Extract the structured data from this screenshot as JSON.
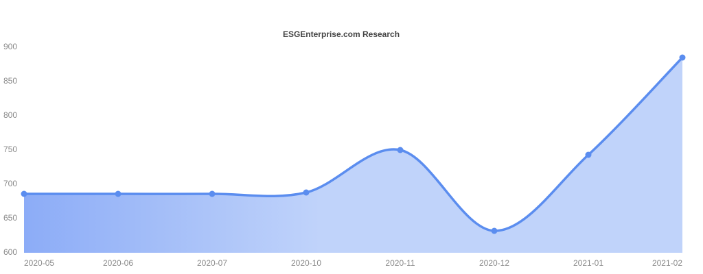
{
  "chart_data": {
    "type": "area",
    "title": "ESGEnterprise.com Research",
    "categories": [
      "2020-05",
      "2020-06",
      "2020-07",
      "2020-10",
      "2020-11",
      "2020-12",
      "2021-01",
      "2021-02"
    ],
    "series": [
      {
        "color": "#5b8def",
        "values": [
          686,
          686,
          686,
          688,
          750,
          632,
          743,
          885
        ]
      }
    ],
    "ylim": [
      600,
      900
    ],
    "yticks": [
      600,
      650,
      700,
      750,
      800,
      850,
      900
    ],
    "grid": false,
    "smooth": true
  }
}
